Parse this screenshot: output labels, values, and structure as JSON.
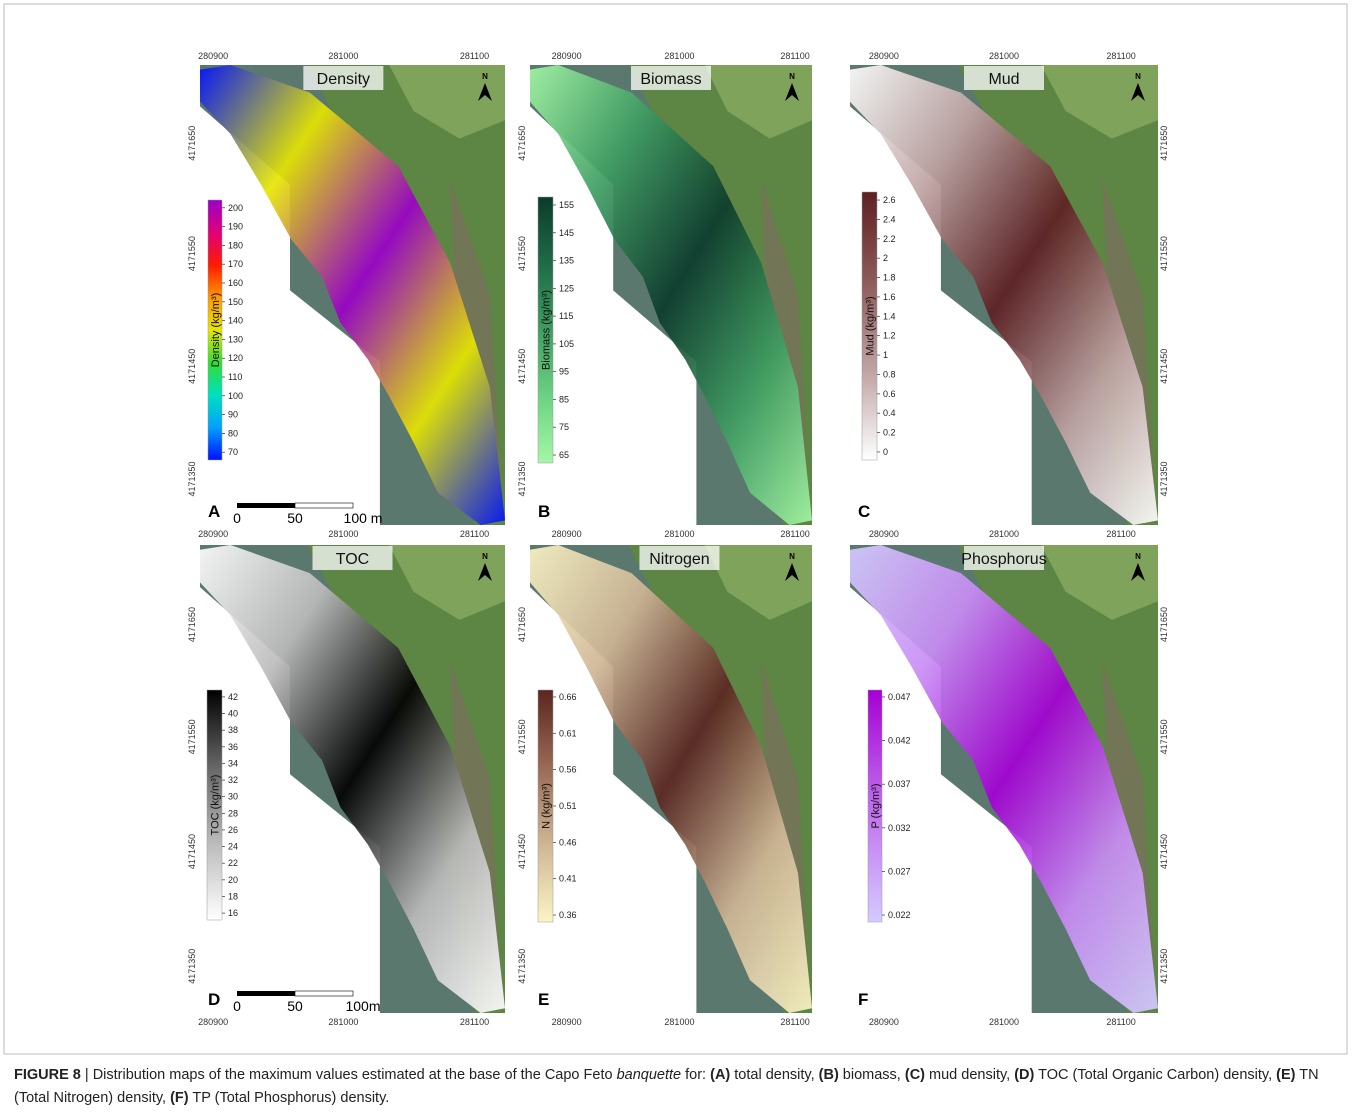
{
  "north_label": "N",
  "panels": [
    {
      "letter": "A",
      "title": "Density",
      "colorbar": {
        "label": "Density (kg/m³)",
        "ticks": [
          200,
          190,
          180,
          170,
          160,
          150,
          140,
          130,
          120,
          110,
          100,
          90,
          80,
          70
        ],
        "colors": [
          "#9a00c8",
          "#e0007a",
          "#ff1a00",
          "#ff9900",
          "#e6e600",
          "#33dd33",
          "#00e0c0",
          "#00a0ff",
          "#0010ff"
        ]
      },
      "xticks": [
        "280900",
        "281000",
        "281100"
      ],
      "yticks": [
        "4171650",
        "4171550",
        "4171450",
        "4171350"
      ],
      "scalebar": [
        "0",
        "50",
        "100 m"
      ]
    },
    {
      "letter": "B",
      "title": "Biomass",
      "colorbar": {
        "label": "Biomass (kg/m³)",
        "ticks": [
          155,
          145,
          135,
          125,
          115,
          105,
          95,
          85,
          75,
          65
        ],
        "colors": [
          "#0c3b2c",
          "#1f6b46",
          "#3f9e62",
          "#6cd283",
          "#a4f7a6"
        ]
      },
      "xticks": [
        "280900",
        "281000",
        "281100"
      ],
      "yticks": [
        "4171650",
        "4171550",
        "4171450",
        "4171350"
      ]
    },
    {
      "letter": "C",
      "title": "Mud",
      "colorbar": {
        "label": "Mud (kg/m³)",
        "ticks": [
          2.6,
          2.4,
          2.2,
          2,
          1.8,
          1.6,
          1.4,
          1.2,
          1,
          0.8,
          0.6,
          0.4,
          0.2,
          0
        ],
        "colors": [
          "#5e1f22",
          "#8e5a5a",
          "#bfa3a3",
          "#ffffff"
        ]
      },
      "xticks": [
        "280900",
        "281000",
        "281100"
      ],
      "yticks": [
        "4171650",
        "4171550",
        "4171450",
        "4171350"
      ]
    },
    {
      "letter": "D",
      "title": "TOC",
      "colorbar": {
        "label": "TOC (kg/m³)",
        "ticks": [
          42,
          40,
          38,
          36,
          34,
          32,
          30,
          28,
          26,
          24,
          22,
          20,
          18,
          16
        ],
        "colors": [
          "#000000",
          "#666666",
          "#bbbbbb",
          "#ffffff"
        ]
      },
      "xticks": [
        "280900",
        "281000",
        "281100"
      ],
      "yticks": [
        "4171650",
        "4171550",
        "4171450",
        "4171350"
      ],
      "scalebar": [
        "0",
        "50",
        "100m"
      ]
    },
    {
      "letter": "E",
      "title": "Nitrogen",
      "colorbar": {
        "label": "N (kg/m³)",
        "ticks": [
          0.66,
          0.61,
          0.56,
          0.51,
          0.46,
          0.41,
          0.36
        ],
        "colors": [
          "#5a2620",
          "#9a6a55",
          "#cfb695",
          "#fbf4c6"
        ]
      },
      "xticks": [
        "280900",
        "281000",
        "281100"
      ],
      "yticks": [
        "4171650",
        "4171550",
        "4171450",
        "4171350"
      ]
    },
    {
      "letter": "F",
      "title": "Phosphorus",
      "colorbar": {
        "label": "P (kg/m³)",
        "ticks": [
          0.047,
          0.042,
          0.037,
          0.032,
          0.027,
          0.022
        ],
        "colors": [
          "#a400d4",
          "#b84ae6",
          "#c88cf4",
          "#d4cbff"
        ]
      },
      "xticks": [
        "280900",
        "281000",
        "281100"
      ],
      "yticks": [
        "4171650",
        "4171550",
        "4171450",
        "4171350"
      ]
    }
  ],
  "caption": {
    "segments": [
      "FIGURE 8",
      " | Distribution maps of the maximum values estimated at the base of the Capo Feto ",
      "banquette",
      " for: ",
      "(A)",
      " total density, ",
      "(B)",
      " biomass, ",
      "(C)",
      " mud density, ",
      "(D)",
      " TOC (Total Organic Carbon) density, ",
      "(E)",
      " TN (Total Nitrogen) density, ",
      "(F)",
      " TP (Total Phosphorus) density."
    ]
  }
}
